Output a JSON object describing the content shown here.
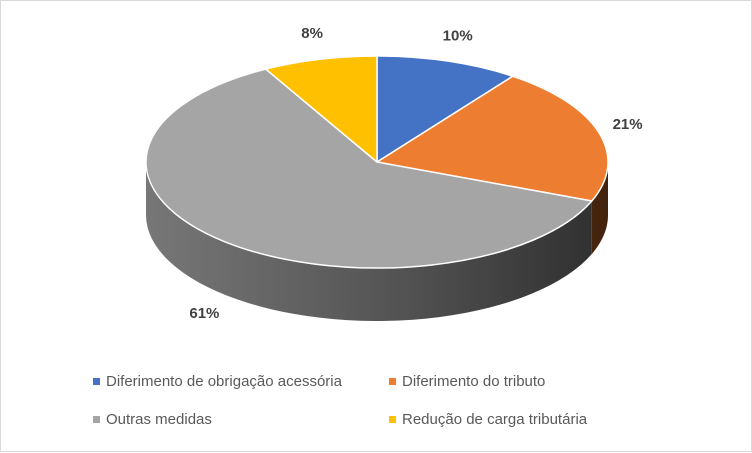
{
  "chart_data": {
    "type": "pie",
    "style": "3d",
    "title": "",
    "legend_position": "bottom",
    "slices": [
      {
        "name": "Diferimento de obrigação acessória",
        "value": 10,
        "label": "10%",
        "color": "#4472C4"
      },
      {
        "name": "Diferimento do tributo",
        "value": 21,
        "label": "21%",
        "color": "#ED7D31"
      },
      {
        "name": "Outras medidas",
        "value": 61,
        "label": "61%",
        "color": "#A5A5A5"
      },
      {
        "name": "Redução de carga tributária",
        "value": 8,
        "label": "8%",
        "color": "#FFC000"
      }
    ]
  }
}
